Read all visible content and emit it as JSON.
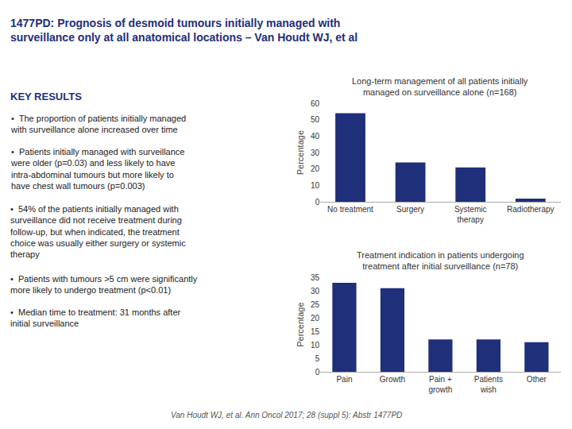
{
  "title": "1477PD: Prognosis of desmoid tumours initially managed with\nsurveillance only at all anatomical locations – Van Houdt WJ, et al",
  "annotations": [
    "KEY RESULTS",
    "•  The proportion of patients initially managed\nwith surveillance alone increased over time",
    "•  Patients initially managed with surveillance\nwere older (p=0.03) and less likely to have\nintra-abdominal tumours but more likely to\nhave chest wall tumours (p=0.003)",
    "•  54% of the patients initially managed with\nsurveillance did not receive treatment during\nfollow-up, but when indicated, the treatment\nchoice was usually either surgery or systemic\ntherapy",
    "•  Patients with tumours >5 cm were significantly\nmore likely to undergo treatment (p<0.01)",
    "•  Median time to treatment: 31 months after\ninitial surveillance",
    "Van Houdt WJ, et al. Ann Oncol 2017; 28 (suppl 5): Abstr 1477PD"
  ],
  "chart_data": [
    {
      "type": "bar",
      "title": "Long-term management of all patients initially\nmanaged on surveillance alone (n=168)",
      "categories": [
        "No treatment",
        "Surgery",
        "Systemic\ntherapy",
        "Radiotherapy"
      ],
      "values": [
        54,
        24,
        21,
        2
      ],
      "color": "#1F2F7A",
      "ylabel": "Percentage",
      "ylim": [
        0,
        60
      ],
      "yticks": [
        0,
        10,
        20,
        30,
        40,
        50,
        60
      ],
      "grid": false
    },
    {
      "type": "bar",
      "title": "Treatment indication in patients undergoing\ntreatment after initial surveillance (n=78)",
      "categories": [
        "Pain",
        "Growth",
        "Pain +\ngrowth",
        "Patients\nwish",
        "Other"
      ],
      "values": [
        33,
        31,
        12,
        12,
        11
      ],
      "color": "#1F2F7A",
      "ylabel": "Percentage",
      "ylim": [
        0,
        35
      ],
      "yticks": [
        0,
        5,
        10,
        15,
        20,
        25,
        30,
        35
      ],
      "grid": false
    }
  ]
}
